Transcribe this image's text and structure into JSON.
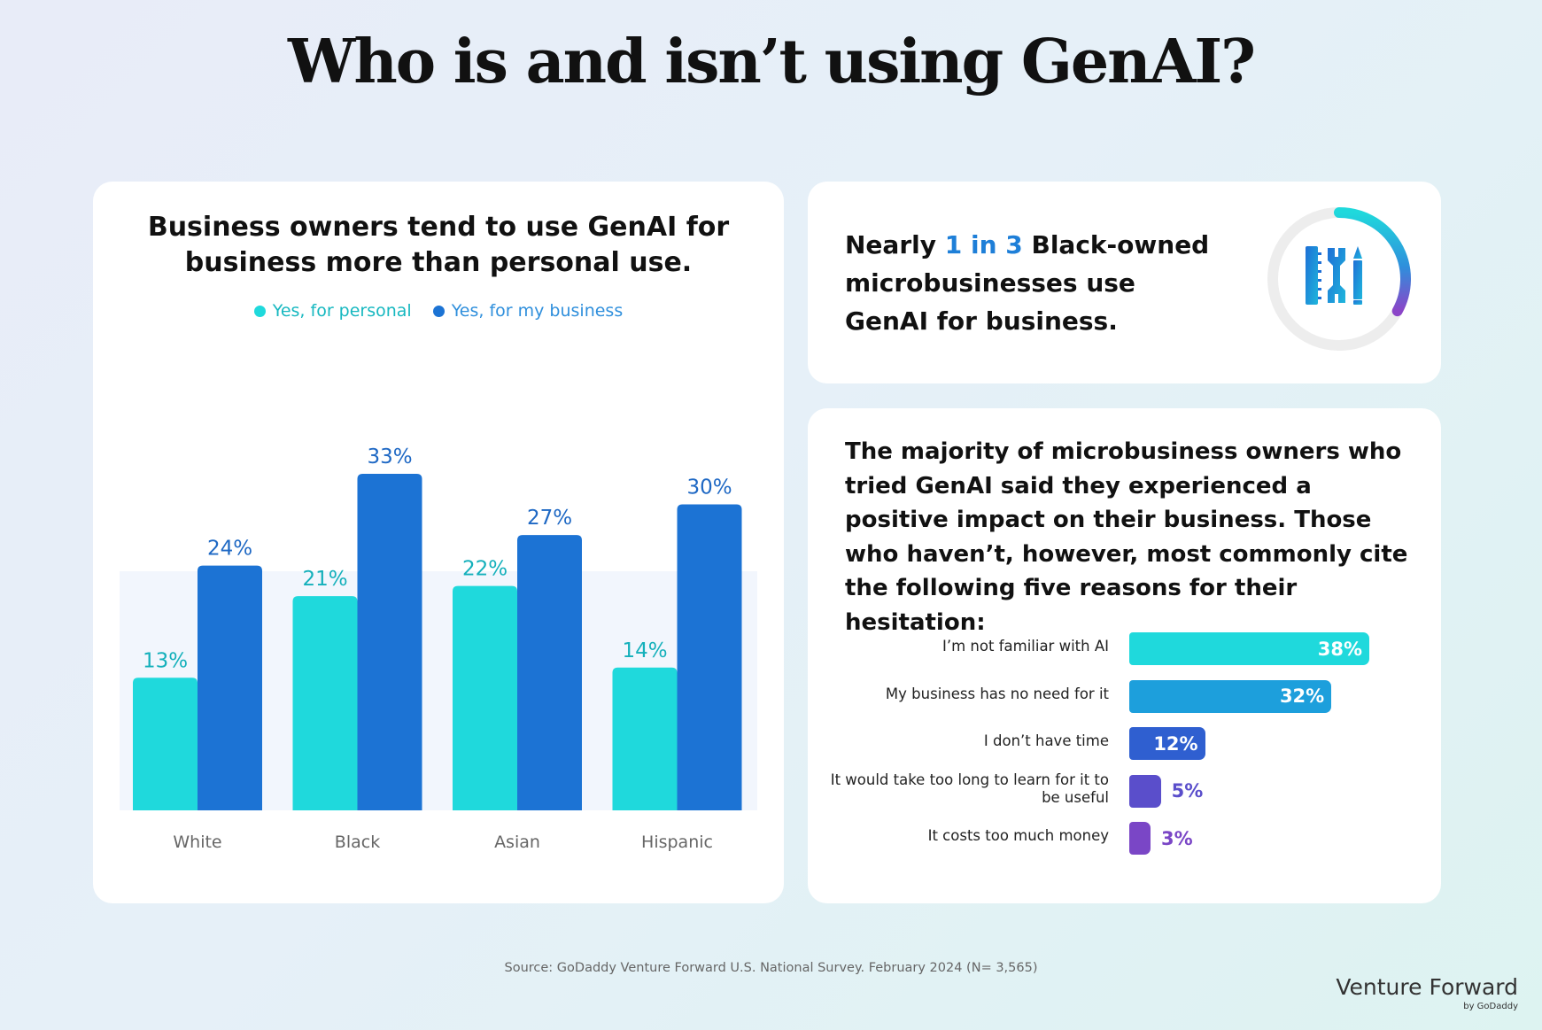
{
  "page": {
    "title": "Who is and isn’t using GenAI?",
    "source": "Source: GoDaddy Venture Forward U.S. National Survey. February 2024 (N= 3,565)",
    "brand": "Venture Forward",
    "brand_sub": "by GoDaddy"
  },
  "stat_card": {
    "prefix": "Nearly ",
    "highlight": "1 in 3",
    "suffix": " Black-owned microbusinesses use GenAI for business.",
    "icon": "tools-icon",
    "ring_value": 0.33
  },
  "reasons_card": {
    "intro": "The majority of microbusiness owners who tried GenAI said they experienced a positive impact on their business. Those who haven’t, however, most commonly cite the following five reasons for their hesitation:"
  },
  "colors": {
    "personal": "#1fd9dc",
    "business": "#1c73d4",
    "reason_bars": [
      "#1fd9dc",
      "#1d9fdc",
      "#2f5fd0",
      "#5a4ecb",
      "#7a46c6"
    ]
  },
  "chart_data": [
    {
      "type": "bar",
      "title": "Business owners tend to use GenAI for business more than personal use.",
      "categories": [
        "White",
        "Black",
        "Asian",
        "Hispanic"
      ],
      "series": [
        {
          "name": "Yes, for personal",
          "values": [
            13,
            21,
            22,
            14
          ]
        },
        {
          "name": "Yes, for my business",
          "values": [
            24,
            33,
            27,
            30
          ]
        }
      ],
      "data_labels": [
        [
          "13%",
          "21%",
          "22%",
          "14%"
        ],
        [
          "24%",
          "33%",
          "27%",
          "30%"
        ]
      ],
      "ylim": [
        0,
        33
      ],
      "legend": "top-center",
      "grid": false
    },
    {
      "type": "bar",
      "orientation": "horizontal",
      "categories": [
        "I’m not familiar with AI",
        "My business has no need for it",
        "I don’t have time",
        "It would take too long to learn for it to be useful",
        "It costs too much money"
      ],
      "values": [
        38,
        32,
        12,
        5,
        3
      ],
      "data_labels": [
        "38%",
        "32%",
        "12%",
        "5%",
        "3%"
      ],
      "xlim": [
        0,
        38
      ],
      "grid": false
    }
  ]
}
